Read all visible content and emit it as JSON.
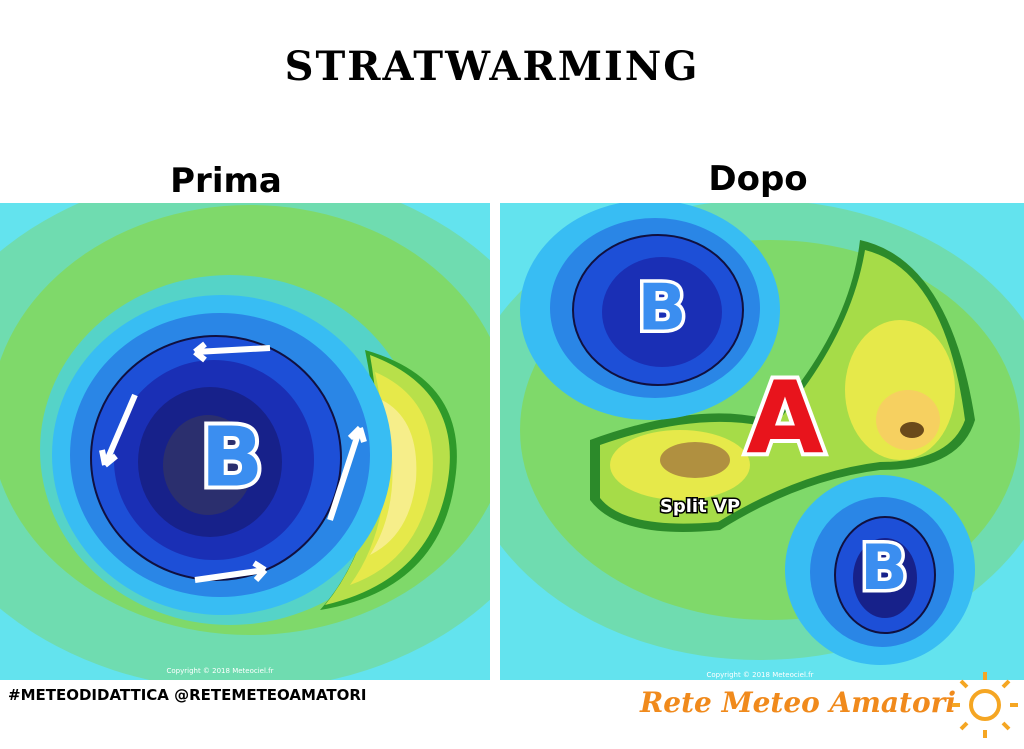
{
  "title": "STRATWARMING",
  "panels": [
    {
      "label": "Prima",
      "markers": [
        "B"
      ],
      "copyright": "Copyright © 2018 Meteociel.fr"
    },
    {
      "label": "Dopo",
      "markers": [
        "B",
        "A",
        "B"
      ],
      "annotation": "Split VP",
      "copyright": "Copyright © 2018 Meteociel.fr"
    }
  ],
  "footer": {
    "hashtag": "#METEODIDATTICA @RETEMETEOAMATORI",
    "brand": "Rete Meteo Amatori"
  }
}
